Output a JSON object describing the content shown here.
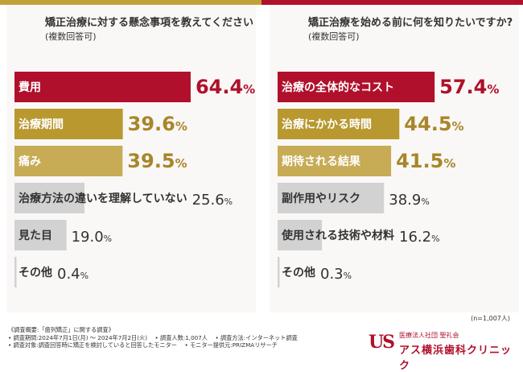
{
  "chart_data": [
    {
      "type": "bar",
      "title": "矯正治療に対する懸念事項を教えてください",
      "subtitle": "(複数回答可)",
      "unit": "%",
      "categories": [
        "費用",
        "治療期間",
        "痛み",
        "治療方法の違いを理解していない",
        "見た目",
        "その他"
      ],
      "values": [
        64.4,
        39.6,
        39.5,
        25.6,
        19.0,
        0.4
      ],
      "value_labels": [
        "64.4",
        "39.6",
        "39.5",
        "25.6",
        "19.0",
        "0.4"
      ],
      "colors": [
        "#b0102b",
        "#b8982f",
        "#c7ab55",
        "#d2d2d2",
        "#d2d2d2",
        "#d2d2d2"
      ],
      "label_colors": [
        "#ffffff",
        "#ffffff",
        "#ffffff",
        "#333333",
        "#333333",
        "#333333"
      ],
      "value_colors": [
        "#b0102b",
        "#a8862a",
        "#a8862a",
        "#333333",
        "#333333",
        "#333333"
      ],
      "xlim": [
        0,
        100
      ]
    },
    {
      "type": "bar",
      "title": "矯正治療を始める前に何を知りたいですか?",
      "subtitle": "(複数回答可)",
      "unit": "%",
      "categories": [
        "治療の全体的なコスト",
        "治療にかかる時間",
        "期待される結果",
        "副作用やリスク",
        "使用される技術や材料",
        "その他"
      ],
      "values": [
        57.4,
        44.5,
        41.5,
        38.9,
        16.2,
        0.3
      ],
      "value_labels": [
        "57.4",
        "44.5",
        "41.5",
        "38.9",
        "16.2",
        "0.3"
      ],
      "colors": [
        "#b0102b",
        "#b8982f",
        "#c7ab55",
        "#d2d2d2",
        "#d2d2d2",
        "#d2d2d2"
      ],
      "label_colors": [
        "#ffffff",
        "#ffffff",
        "#ffffff",
        "#333333",
        "#333333",
        "#333333"
      ],
      "value_colors": [
        "#b0102b",
        "#a8862a",
        "#a8862a",
        "#333333",
        "#333333",
        "#333333"
      ],
      "xlim": [
        0,
        100
      ]
    }
  ],
  "sample_size": "(n=1,007人)",
  "footer": {
    "line1": "《調査概要:「歯列矯正」に関する調査》",
    "line2": "• 調査期間:2024年7月1日(月) ～ 2024年7月2日(火)　 • 調査人数:1,007人　 • 調査方法:インターネット調査",
    "line3": "• 調査対象:調査回答時に矯正を検討していると回答したモニター　 • モニター提供元:PRIZMAリサーチ"
  },
  "logo": {
    "mark": "US",
    "sub": "医療法人社団 聖礼会",
    "name": "アス横浜歯科クリニック"
  },
  "colors": {
    "gold": "#c2a13a",
    "red": "#b0102b"
  }
}
